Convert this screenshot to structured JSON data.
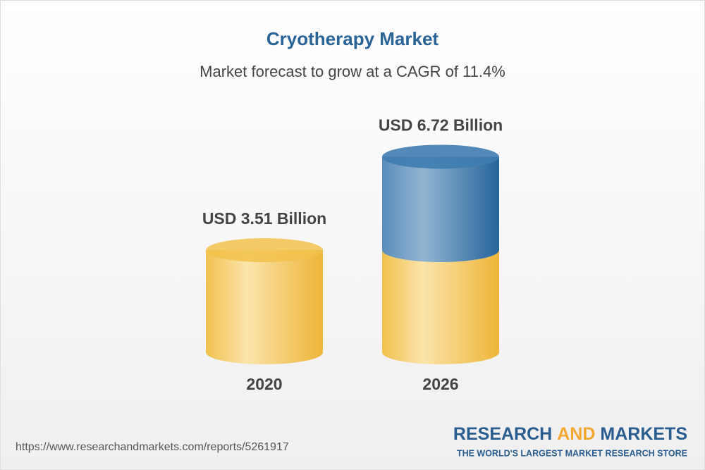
{
  "chart_data": {
    "type": "cylinder",
    "title": "Cryotherapy Market",
    "subtitle": "Market forecast to grow at a CAGR of 11.4%",
    "categories": [
      "2020",
      "2026"
    ],
    "values": [
      3.51,
      6.72
    ],
    "value_labels": [
      "USD 3.51 Billion",
      "USD 6.72 Billion"
    ],
    "color": "#f2c24c",
    "growth_color": "#3f7cb0"
  },
  "footer": {
    "url": "https://www.researchandmarkets.com/reports/5261917",
    "brand": [
      "RESEARCH",
      "AND",
      "MARKETS"
    ],
    "tagline": "THE WORLD'S LARGEST MARKET RESEARCH STORE"
  }
}
